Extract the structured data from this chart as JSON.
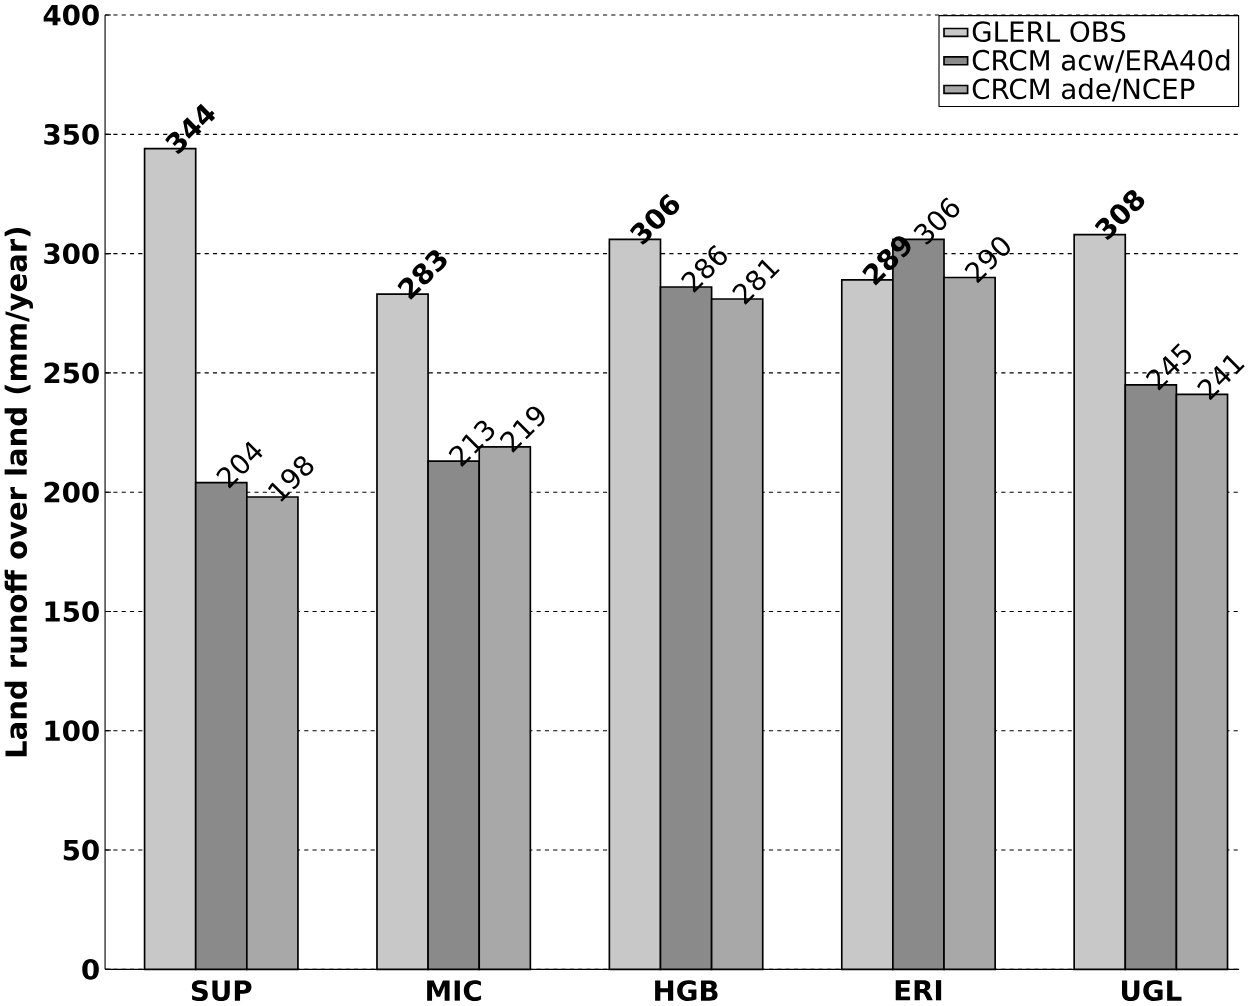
{
  "chart_data": {
    "type": "bar",
    "ylabel": "Land runoff over land (mm/year)",
    "categories": [
      "SUP",
      "MIC",
      "HGB",
      "ERI",
      "UGL"
    ],
    "series": [
      {
        "name": "GLERL OBS",
        "color": "#c8c8c8",
        "values": [
          344,
          283,
          306,
          289,
          308
        ]
      },
      {
        "name": "CRCM acw/ERA40d",
        "color": "#8a8a8a",
        "values": [
          204,
          213,
          286,
          306,
          245
        ]
      },
      {
        "name": "CRCM ade/NCEP",
        "color": "#a8a8a8",
        "values": [
          198,
          219,
          281,
          290,
          241
        ]
      }
    ],
    "ylim": [
      0,
      400
    ],
    "yticks": [
      0,
      50,
      100,
      150,
      200,
      250,
      300,
      350,
      400
    ],
    "grid": "y",
    "legend": "top right",
    "data_labels": true
  }
}
